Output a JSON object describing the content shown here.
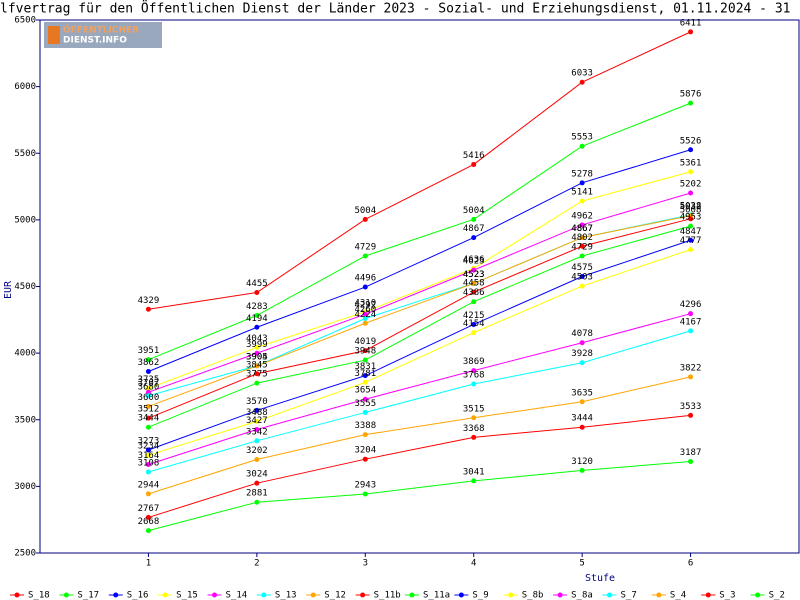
{
  "chart_data": {
    "type": "line",
    "title": "lfvertrag für den Öffentlichen Dienst der Länder 2023 - Sozial- und Erziehungsdienst, 01.11.2024 - 31",
    "logo": [
      "ÖFFENTLICHER",
      "DIENST.INFO"
    ],
    "x_label": "Stufe",
    "y_label": "EUR",
    "x": [
      1,
      2,
      3,
      4,
      5,
      6
    ],
    "xlim": [
      0,
      7
    ],
    "xticks": [
      1,
      2,
      3,
      4,
      5,
      6
    ],
    "ylim": [
      2500,
      6500
    ],
    "yticks": [
      2500,
      3000,
      3500,
      4000,
      4500,
      5000,
      5500,
      6000,
      6500
    ],
    "series": [
      {
        "name": "S_18",
        "color": "#ff0000",
        "values": [
          4329,
          4455,
          5004,
          5416,
          6033,
          6411
        ]
      },
      {
        "name": "S_17",
        "color": "#00ff00",
        "values": [
          3951,
          4283,
          4729,
          5004,
          5553,
          5876
        ]
      },
      {
        "name": "S_16",
        "color": "#0000ff",
        "values": [
          3862,
          4194,
          4496,
          4867,
          5278,
          5526
        ]
      },
      {
        "name": "S_15",
        "color": "#ffff00",
        "values": [
          3735,
          4043,
          4310,
          4636,
          5141,
          5361
        ]
      },
      {
        "name": "S_14",
        "color": "#ff00ff",
        "values": [
          3707,
          3999,
          4292,
          4623,
          4962,
          5202
        ]
      },
      {
        "name": "S_13",
        "color": "#00ffff",
        "values": [
          3680,
          3905,
          4260,
          4523,
          4867,
          5038
        ]
      },
      {
        "name": "S_12",
        "color": "#ffa500",
        "values": [
          3600,
          3904,
          4224,
          4523,
          4867,
          5032
        ]
      },
      {
        "name": "S_11b",
        "color": "#ff0000",
        "values": [
          3512,
          3845,
          4019,
          4458,
          4802,
          5008
        ]
      },
      {
        "name": "S_11a",
        "color": "#00ff00",
        "values": [
          3444,
          3775,
          3948,
          4386,
          4729,
          4953
        ]
      },
      {
        "name": "S_9",
        "color": "#0000ff",
        "values": [
          3273,
          3570,
          3831,
          4215,
          4575,
          4847
        ]
      },
      {
        "name": "S_8b",
        "color": "#ffff00",
        "values": [
          3234,
          3488,
          3781,
          4154,
          4503,
          4777
        ]
      },
      {
        "name": "S_8a",
        "color": "#ff00ff",
        "values": [
          3164,
          3427,
          3654,
          3869,
          4078,
          4296
        ]
      },
      {
        "name": "S_7",
        "color": "#00ffff",
        "values": [
          3108,
          3342,
          3555,
          3768,
          3928,
          4167
        ]
      },
      {
        "name": "S_4",
        "color": "#ffa500",
        "values": [
          2944,
          3202,
          3388,
          3515,
          3635,
          3822
        ]
      },
      {
        "name": "S_3",
        "color": "#ff0000",
        "values": [
          2767,
          3024,
          3204,
          3368,
          3444,
          3533
        ]
      },
      {
        "name": "S_2",
        "color": "#00ff00",
        "values": [
          2668,
          2881,
          2943,
          3041,
          3120,
          3187
        ]
      }
    ]
  }
}
